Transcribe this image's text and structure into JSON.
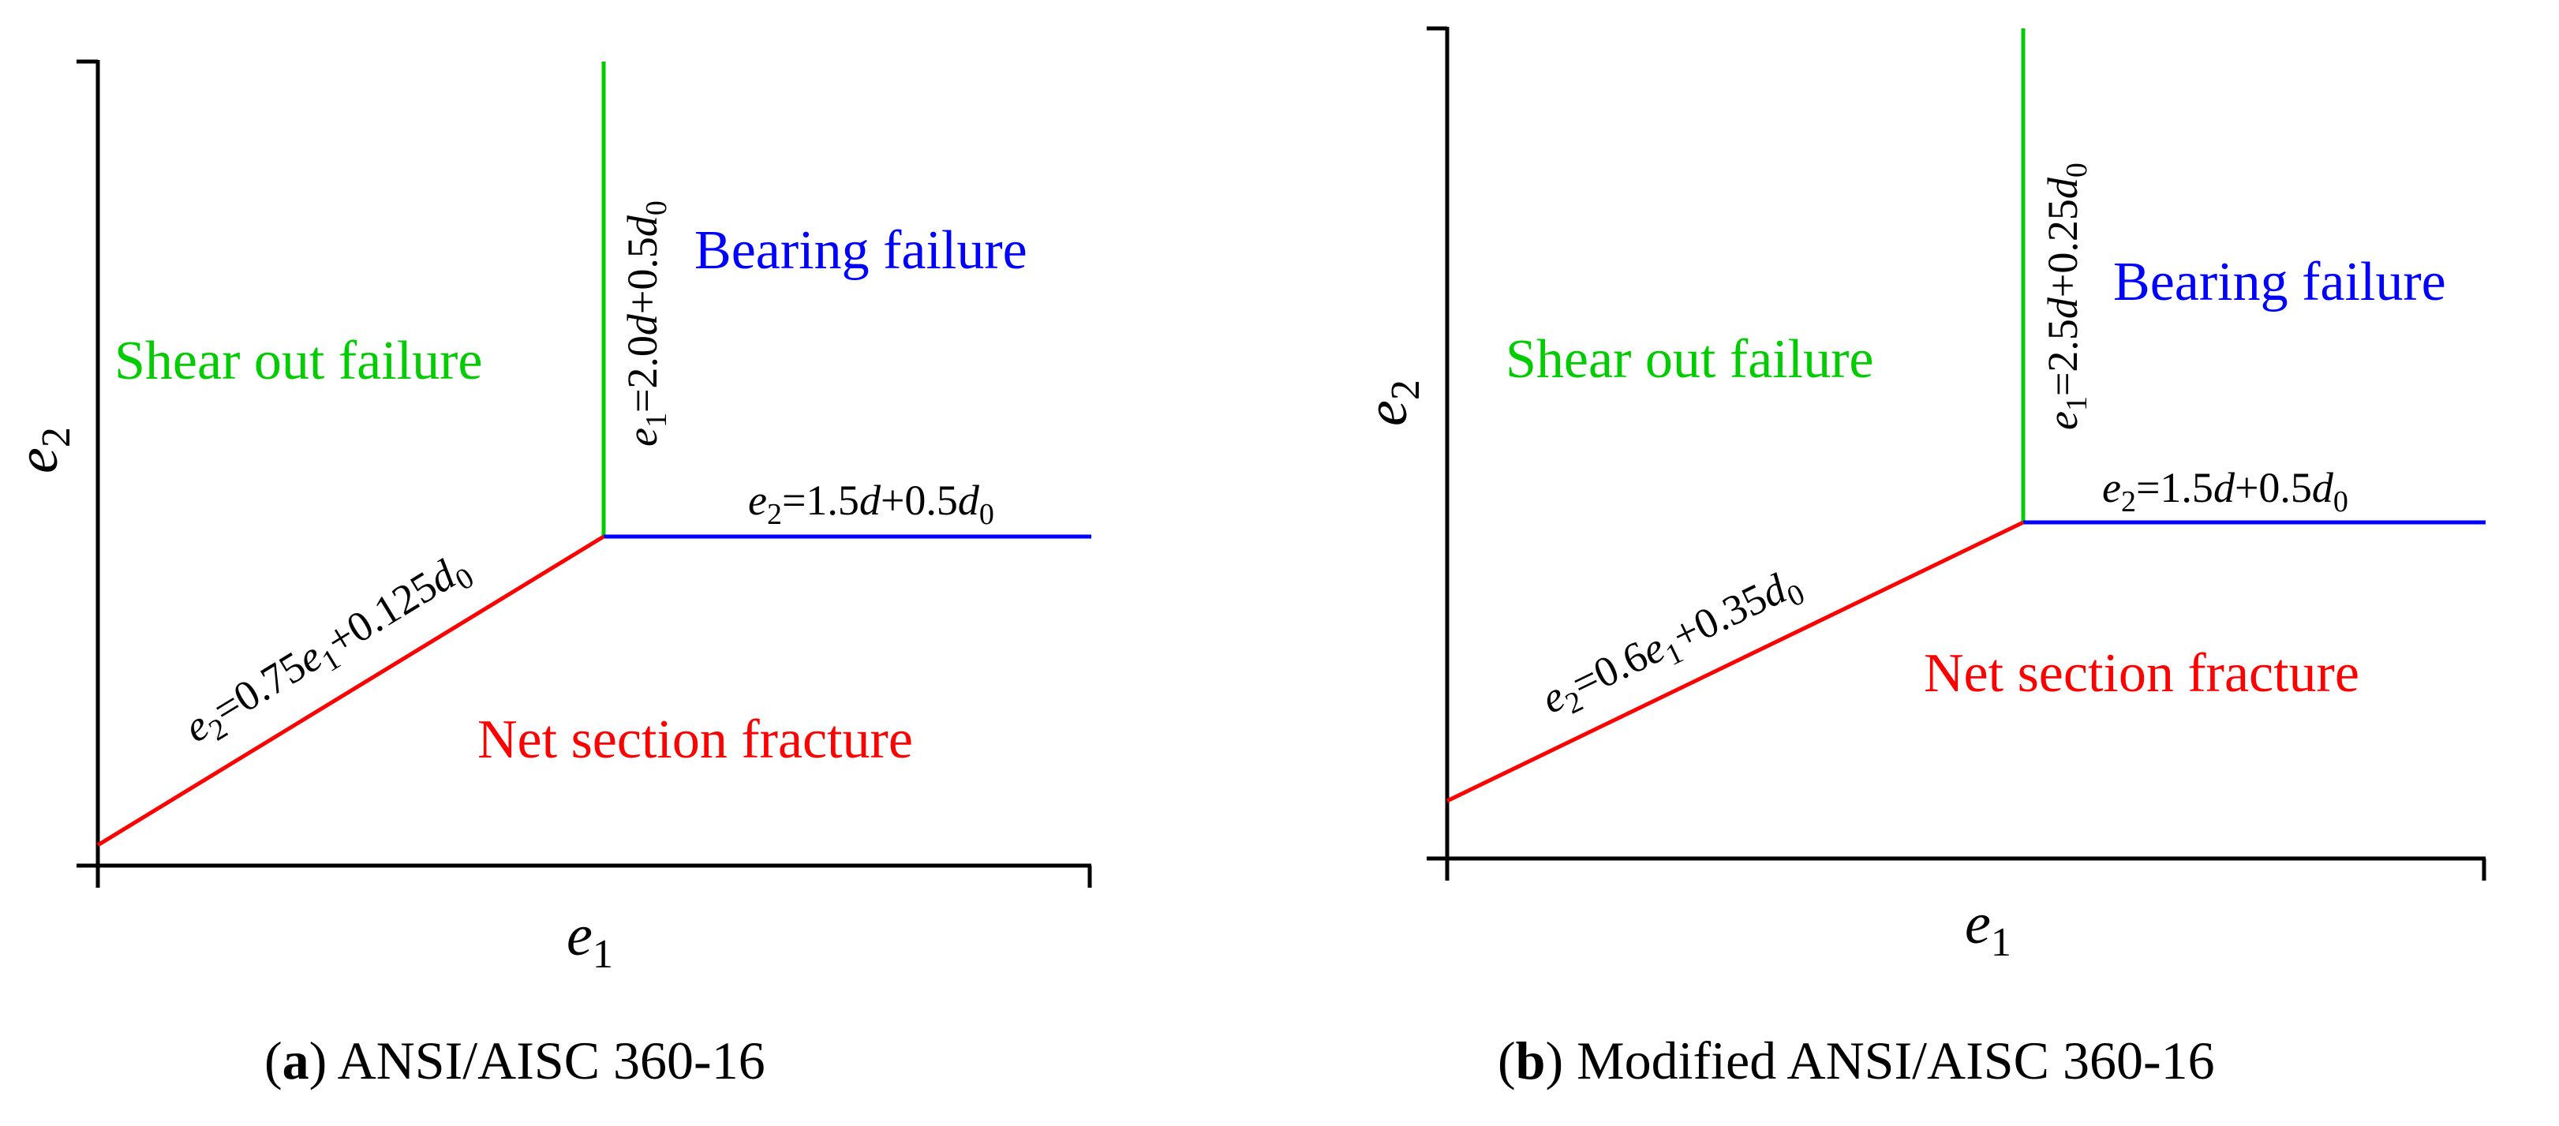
{
  "colors": {
    "axis": "#000000",
    "shear_line": "#00cc00",
    "bearing_line": "#0000ff",
    "net_line": "#ff0000",
    "shear_text": "#00cc00",
    "bearing_text": "#0000ff",
    "net_text": "#ff0000"
  },
  "panel_a": {
    "caption_tag": "a",
    "caption_text": "ANSI/AISC 360-16",
    "xlabel": "e",
    "xlabel_sub": "1",
    "ylabel": "e",
    "ylabel_sub": "2",
    "regions": {
      "shear": "Shear out failure",
      "bearing": "Bearing failure",
      "net": "Net section fracture"
    },
    "equations": {
      "vertical": {
        "lhs": "e",
        "lhs_sub": "1",
        "rhs_a": "=2.0",
        "rhs_d": "d",
        "rhs_b": "+0.5",
        "rhs_d0": "d",
        "rhs_d0_sub": "0"
      },
      "horizontal": {
        "lhs": "e",
        "lhs_sub": "2",
        "rhs_a": "=1.5",
        "rhs_d": "d",
        "rhs_b": "+0.5",
        "rhs_d0": "d",
        "rhs_d0_sub": "0"
      },
      "sloped": {
        "lhs": "e",
        "lhs_sub": "2",
        "rhs_a": "=0.75",
        "rhs_e": "e",
        "rhs_e_sub": "1",
        "rhs_b": "+0.125",
        "rhs_d0": "d",
        "rhs_d0_sub": "0"
      }
    }
  },
  "panel_b": {
    "caption_tag": "b",
    "caption_text": "Modified ANSI/AISC 360-16",
    "xlabel": "e",
    "xlabel_sub": "1",
    "ylabel": "e",
    "ylabel_sub": "2",
    "regions": {
      "shear": "Shear out failure",
      "bearing": "Bearing failure",
      "net": "Net section fracture"
    },
    "equations": {
      "vertical": {
        "lhs": "e",
        "lhs_sub": "1",
        "rhs_a": "=2.5",
        "rhs_d": "d",
        "rhs_b": "+0.25",
        "rhs_d0": "d",
        "rhs_d0_sub": "0"
      },
      "horizontal": {
        "lhs": "e",
        "lhs_sub": "2",
        "rhs_a": "=1.5",
        "rhs_d": "d",
        "rhs_b": "+0.5",
        "rhs_d0": "d",
        "rhs_d0_sub": "0"
      },
      "sloped": {
        "lhs": "e",
        "lhs_sub": "2",
        "rhs_a": "=0.6",
        "rhs_e": "e",
        "rhs_e_sub": "1",
        "rhs_b": "+0.35",
        "rhs_d0": "d",
        "rhs_d0_sub": "0"
      }
    }
  }
}
